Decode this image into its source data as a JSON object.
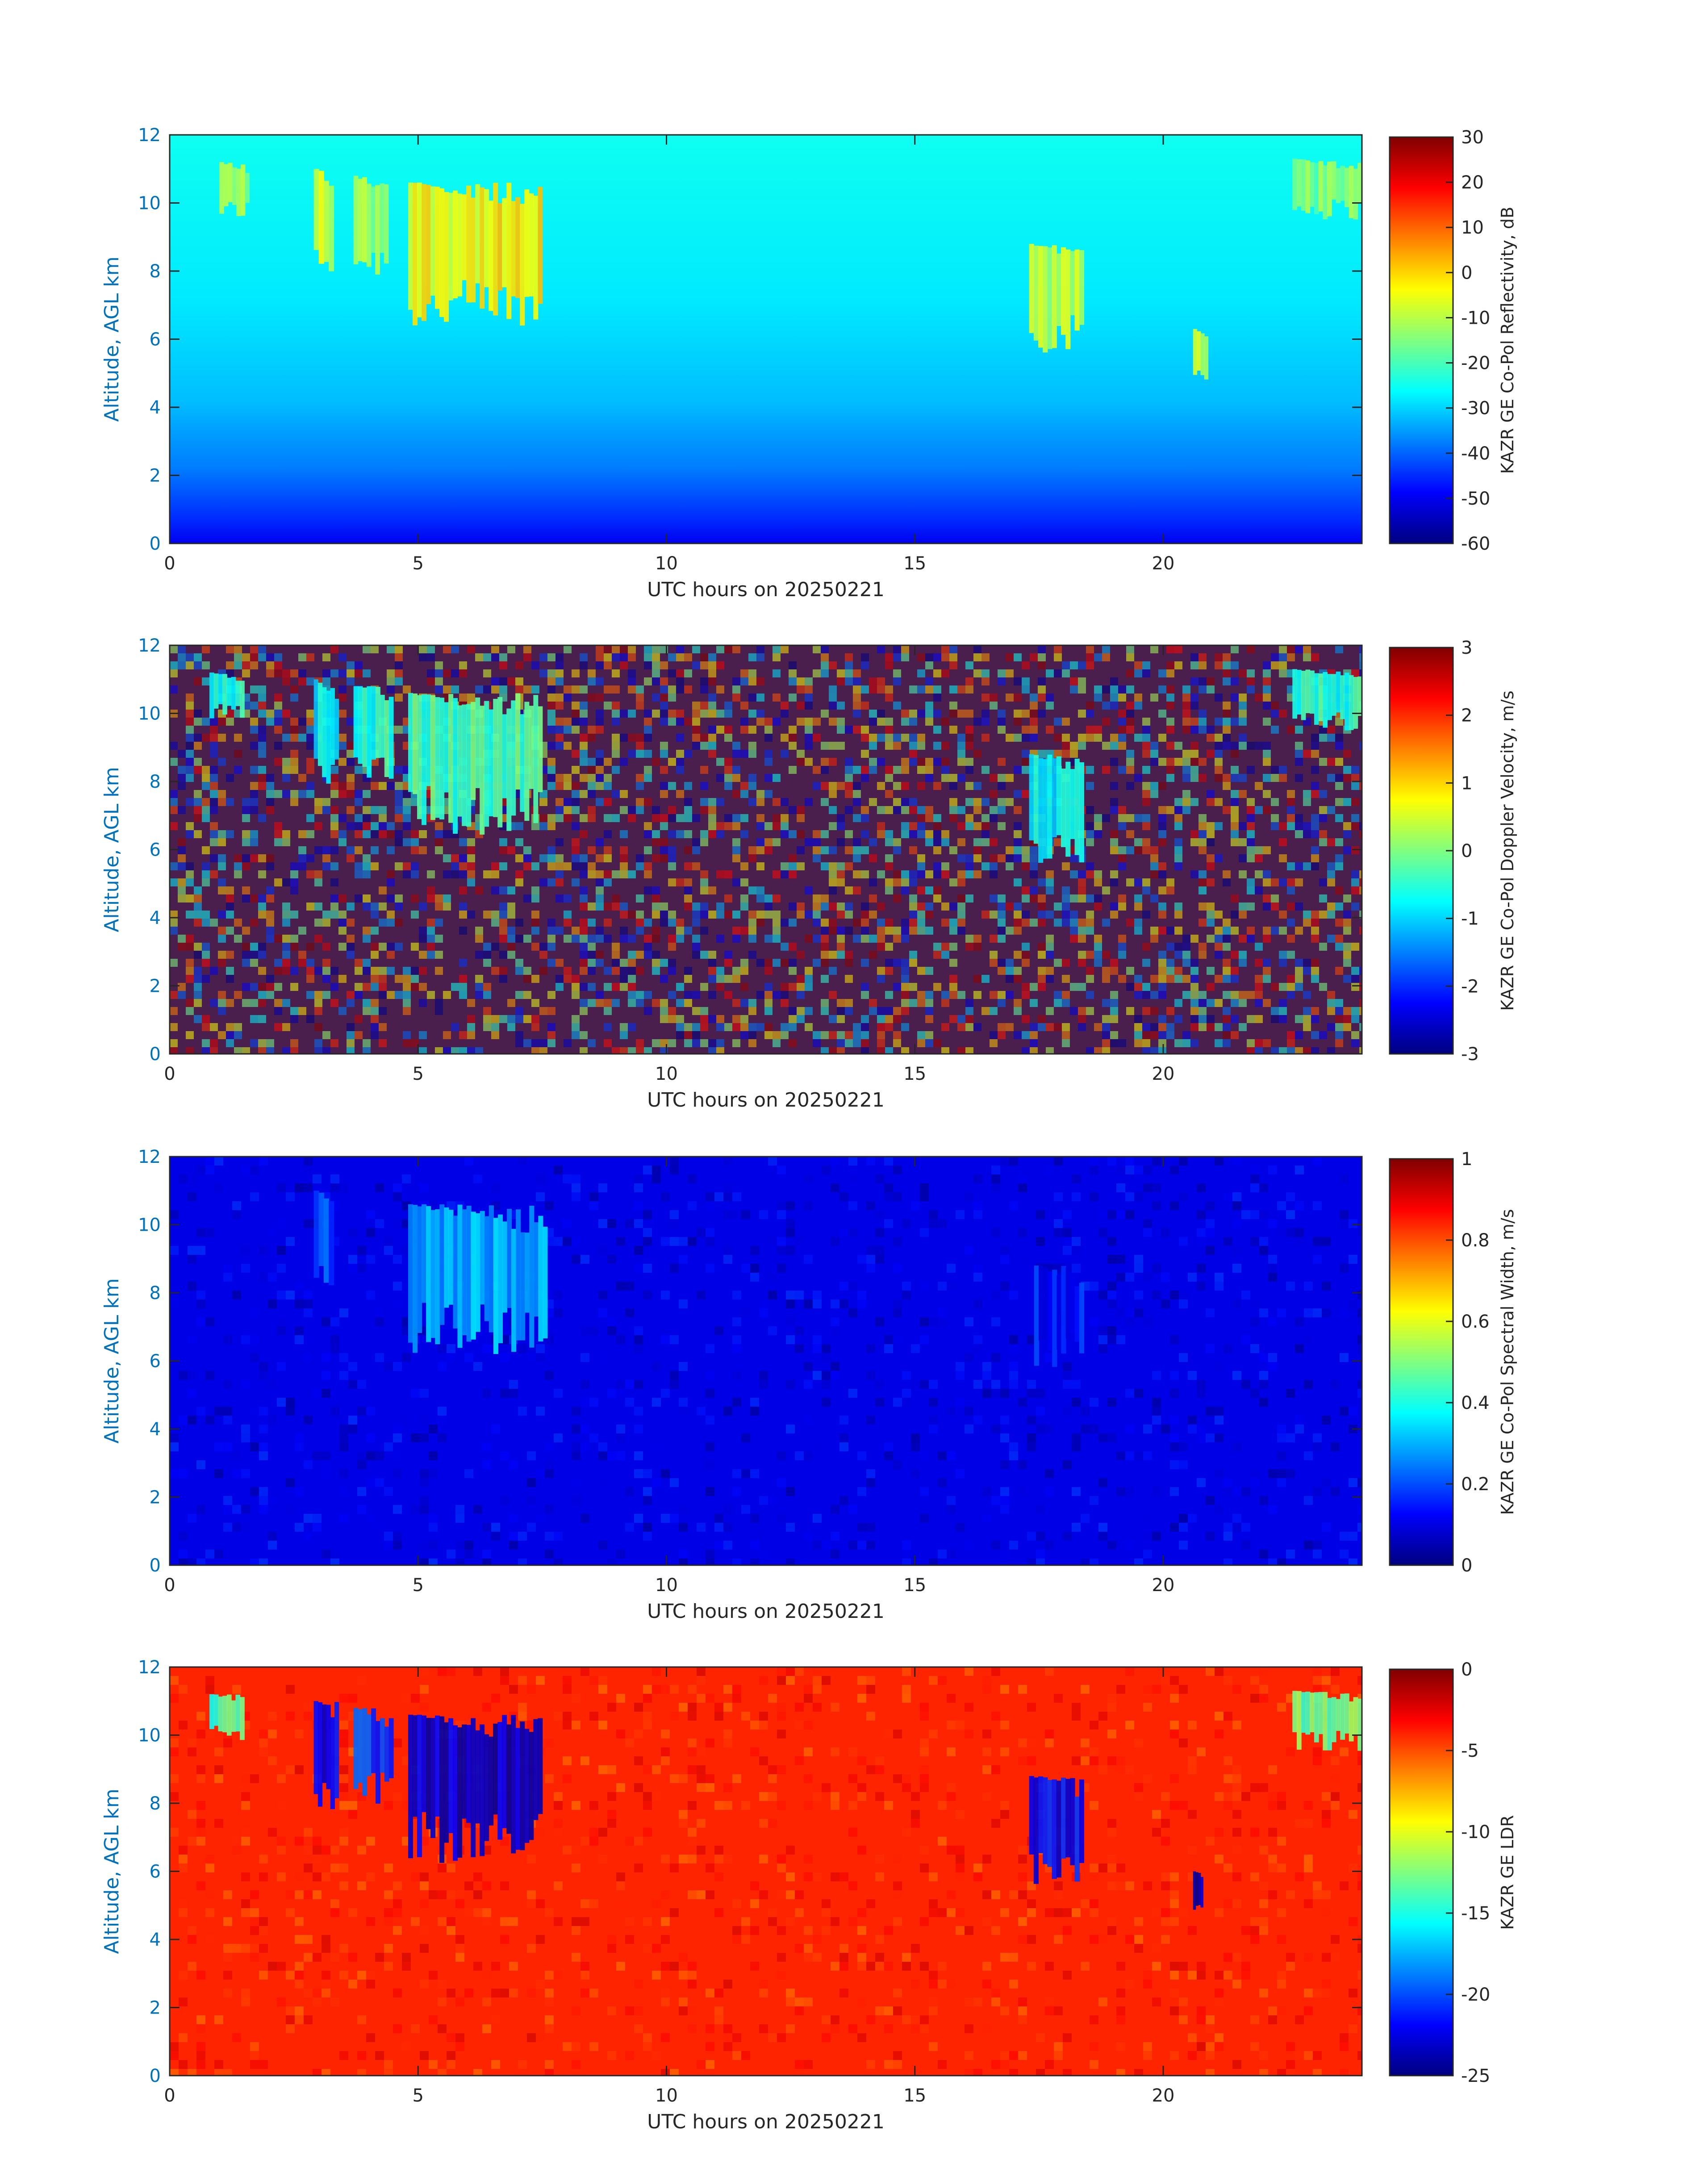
{
  "chart_data": [
    {
      "type": "heatmap",
      "title": "",
      "xlabel": "UTC hours on 20250221",
      "ylabel": "Altitude, AGL km",
      "xlim": [
        0,
        24
      ],
      "ylim": [
        0,
        12
      ],
      "xticks": [
        0,
        5,
        10,
        15,
        20
      ],
      "xtick_labels": [
        "0",
        "5",
        "10",
        "15",
        "20"
      ],
      "yticks": [
        0,
        2,
        4,
        6,
        8,
        10,
        12
      ],
      "ytick_labels": [
        "0",
        "2",
        "4",
        "6",
        "8",
        "10",
        "12"
      ],
      "colormap": "jet",
      "colorbar": {
        "label": "KAZR GE Co-Pol Reflectivity, dB",
        "range": [
          -60,
          30
        ],
        "ticks": [
          -60,
          -50,
          -40,
          -30,
          -20,
          -10,
          0,
          10,
          20,
          30
        ],
        "tick_labels": [
          "-60",
          "-50",
          "-40",
          "-30",
          "-20",
          "-10",
          "0",
          "10",
          "20",
          "30"
        ]
      },
      "background_value": -25,
      "cloud_features": [
        {
          "x_range": [
            1.0,
            1.6
          ],
          "y_range": [
            9.5,
            11.2
          ],
          "value": -12
        },
        {
          "x_range": [
            2.9,
            3.3
          ],
          "y_range": [
            7.8,
            11.0
          ],
          "value": -8
        },
        {
          "x_range": [
            3.7,
            4.4
          ],
          "y_range": [
            7.8,
            10.8
          ],
          "value": -12
        },
        {
          "x_range": [
            4.8,
            7.5
          ],
          "y_range": [
            6.2,
            10.6
          ],
          "value": -3
        },
        {
          "x_range": [
            17.3,
            18.4
          ],
          "y_range": [
            5.6,
            8.8
          ],
          "value": -10
        },
        {
          "x_range": [
            20.6,
            20.9
          ],
          "y_range": [
            4.8,
            6.3
          ],
          "value": -8
        },
        {
          "x_range": [
            22.6,
            24.0
          ],
          "y_range": [
            9.5,
            11.3
          ],
          "value": -15
        }
      ]
    },
    {
      "type": "heatmap",
      "title": "",
      "xlabel": "UTC hours on 20250221",
      "ylabel": "Altitude, AGL km",
      "xlim": [
        0,
        24
      ],
      "ylim": [
        0,
        12
      ],
      "xticks": [
        0,
        5,
        10,
        15,
        20
      ],
      "xtick_labels": [
        "0",
        "5",
        "10",
        "15",
        "20"
      ],
      "yticks": [
        0,
        2,
        4,
        6,
        8,
        10,
        12
      ],
      "ytick_labels": [
        "0",
        "2",
        "4",
        "6",
        "8",
        "10",
        "12"
      ],
      "colormap": "jet",
      "colorbar": {
        "label": "KAZR GE Co-Pol Doppler Velocity, m/s",
        "range": [
          -3,
          3
        ],
        "ticks": [
          -3,
          -2,
          -1,
          0,
          1,
          2,
          3
        ],
        "tick_labels": [
          "-3",
          "-2",
          "-1",
          "0",
          "1",
          "2",
          "3"
        ]
      },
      "background_value": "noise",
      "cloud_features": [
        {
          "x_range": [
            0.8,
            1.5
          ],
          "y_range": [
            9.8,
            11.2
          ],
          "value": -0.5
        },
        {
          "x_range": [
            2.9,
            3.4
          ],
          "y_range": [
            7.8,
            11.0
          ],
          "value": -0.8
        },
        {
          "x_range": [
            3.7,
            4.5
          ],
          "y_range": [
            7.9,
            10.8
          ],
          "value": -0.5
        },
        {
          "x_range": [
            4.8,
            7.5
          ],
          "y_range": [
            6.4,
            10.6
          ],
          "value": -0.3
        },
        {
          "x_range": [
            17.3,
            18.4
          ],
          "y_range": [
            5.6,
            8.8
          ],
          "value": -0.8
        },
        {
          "x_range": [
            22.6,
            24.0
          ],
          "y_range": [
            9.5,
            11.3
          ],
          "value": -0.5
        }
      ]
    },
    {
      "type": "heatmap",
      "title": "",
      "xlabel": "UTC hours on 20250221",
      "ylabel": "Altitude, AGL km",
      "xlim": [
        0,
        24
      ],
      "ylim": [
        0,
        12
      ],
      "xticks": [
        0,
        5,
        10,
        15,
        20
      ],
      "xtick_labels": [
        "0",
        "5",
        "10",
        "15",
        "20"
      ],
      "yticks": [
        0,
        2,
        4,
        6,
        8,
        10,
        12
      ],
      "ytick_labels": [
        "0",
        "2",
        "4",
        "6",
        "8",
        "10",
        "12"
      ],
      "colormap": "jet",
      "colorbar": {
        "label": "KAZR GE Co-Pol Spectral Width, m/s",
        "range": [
          0,
          1
        ],
        "ticks": [
          0,
          0.2,
          0.4,
          0.6,
          0.8,
          1
        ],
        "tick_labels": [
          "0",
          "0.2",
          "0.4",
          "0.6",
          "0.8",
          "1"
        ]
      },
      "background_value": 0.1,
      "cloud_features": [
        {
          "x_range": [
            4.8,
            7.6
          ],
          "y_range": [
            6.2,
            10.6
          ],
          "value": 0.3
        },
        {
          "x_range": [
            2.9,
            3.3
          ],
          "y_range": [
            8.0,
            11.0
          ],
          "value": 0.2
        },
        {
          "x_range": [
            17.4,
            18.4
          ],
          "y_range": [
            5.8,
            8.8
          ],
          "value": 0.15
        }
      ]
    },
    {
      "type": "heatmap",
      "title": "",
      "xlabel": "UTC hours on 20250221",
      "ylabel": "Altitude, AGL km",
      "xlim": [
        0,
        24
      ],
      "ylim": [
        0,
        12
      ],
      "xticks": [
        0,
        5,
        10,
        15,
        20
      ],
      "xtick_labels": [
        "0",
        "5",
        "10",
        "15",
        "20"
      ],
      "yticks": [
        0,
        2,
        4,
        6,
        8,
        10,
        12
      ],
      "ytick_labels": [
        "0",
        "2",
        "4",
        "6",
        "8",
        "10",
        "12"
      ],
      "colormap": "jet",
      "colorbar": {
        "label": "KAZR GE LDR",
        "range": [
          -25,
          0
        ],
        "ticks": [
          -25,
          -20,
          -15,
          -10,
          -5,
          0
        ],
        "tick_labels": [
          "-25",
          "-20",
          "-15",
          "-10",
          "-5",
          "0"
        ]
      },
      "background_value": -4,
      "cloud_features": [
        {
          "x_range": [
            0.8,
            1.5
          ],
          "y_range": [
            9.8,
            11.2
          ],
          "value": -14
        },
        {
          "x_range": [
            2.9,
            3.4
          ],
          "y_range": [
            7.8,
            11.0
          ],
          "value": -22
        },
        {
          "x_range": [
            3.7,
            4.5
          ],
          "y_range": [
            7.9,
            10.8
          ],
          "value": -20
        },
        {
          "x_range": [
            4.8,
            7.5
          ],
          "y_range": [
            6.2,
            10.6
          ],
          "value": -23
        },
        {
          "x_range": [
            17.3,
            18.4
          ],
          "y_range": [
            5.6,
            8.8
          ],
          "value": -22
        },
        {
          "x_range": [
            20.6,
            20.8
          ],
          "y_range": [
            4.8,
            6.0
          ],
          "value": -24
        },
        {
          "x_range": [
            22.6,
            24.0
          ],
          "y_range": [
            9.5,
            11.3
          ],
          "value": -13
        }
      ]
    }
  ]
}
